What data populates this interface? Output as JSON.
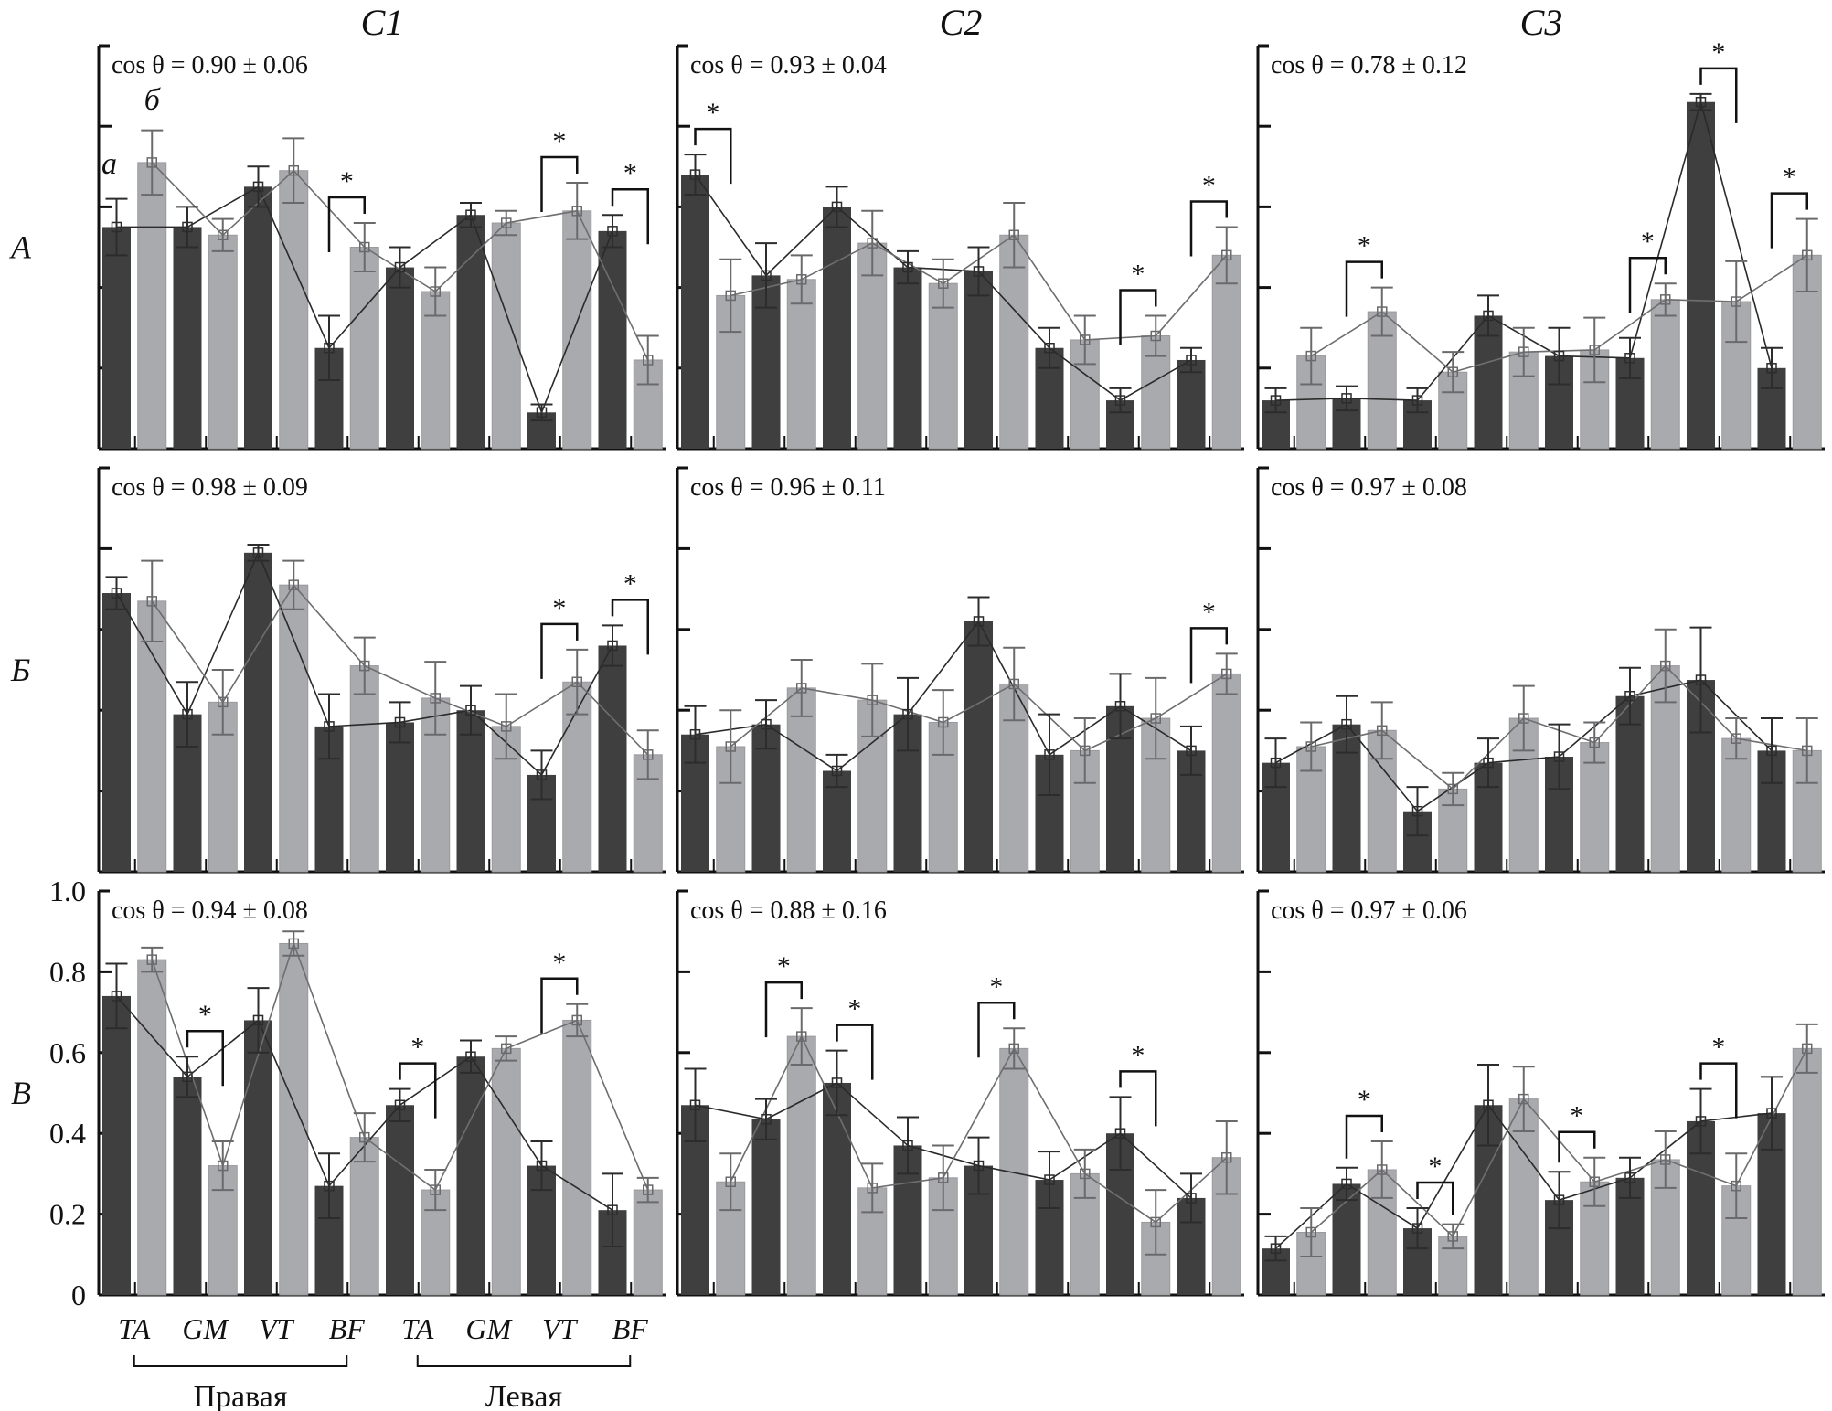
{
  "chart_data": {
    "type": "bar",
    "description": "3x3 grid of grouped bar charts with error bars and overlaid line profiles; dark bars = series a, light bars = series б",
    "columns": [
      "C1",
      "C2",
      "C3"
    ],
    "rows": [
      "А",
      "Б",
      "В"
    ],
    "categories": [
      "TA",
      "GM",
      "VT",
      "BF",
      "TA",
      "GM",
      "VT",
      "BF"
    ],
    "category_groups": [
      {
        "label": "Правая",
        "from": 0,
        "to": 3
      },
      {
        "label": "Левая",
        "from": 4,
        "to": 7
      }
    ],
    "series_names": [
      "а",
      "б"
    ],
    "series_colors": {
      "а": "#3f3f3f",
      "б": "#a9aaad"
    },
    "ylim": [
      0,
      1.0
    ],
    "yticks": [
      "0",
      "0.2",
      "0.4",
      "0.6",
      "0.8",
      "1.0"
    ],
    "panels": [
      {
        "row": "А",
        "col": "C1",
        "cos_label": "cos θ = 0.90 ± 0.06",
        "a": [
          0.55,
          0.55,
          0.65,
          0.25,
          0.45,
          0.58,
          0.09,
          0.54
        ],
        "a_err": [
          0.07,
          0.05,
          0.05,
          0.08,
          0.05,
          0.03,
          0.02,
          0.04
        ],
        "b": [
          0.71,
          0.53,
          0.69,
          0.5,
          0.39,
          0.56,
          0.59,
          0.22
        ],
        "b_err": [
          0.08,
          0.04,
          0.08,
          0.06,
          0.06,
          0.03,
          0.07,
          0.06
        ],
        "significant": [
          3,
          6,
          7
        ]
      },
      {
        "row": "А",
        "col": "C2",
        "cos_label": "cos θ = 0.93 ± 0.04",
        "a": [
          0.68,
          0.43,
          0.6,
          0.45,
          0.44,
          0.25,
          0.12,
          0.22
        ],
        "a_err": [
          0.05,
          0.08,
          0.05,
          0.04,
          0.06,
          0.05,
          0.03,
          0.03
        ],
        "b": [
          0.38,
          0.42,
          0.51,
          0.41,
          0.53,
          0.27,
          0.28,
          0.48
        ],
        "b_err": [
          0.09,
          0.06,
          0.08,
          0.06,
          0.08,
          0.06,
          0.05,
          0.07
        ],
        "significant": [
          0,
          6,
          7
        ]
      },
      {
        "row": "А",
        "col": "C3",
        "cos_label": "cos θ = 0.78 ± 0.12",
        "a": [
          0.12,
          0.125,
          0.12,
          0.33,
          0.23,
          0.225,
          0.86,
          0.2
        ],
        "a_err": [
          0.03,
          0.03,
          0.03,
          0.05,
          0.07,
          0.05,
          0.02,
          0.05
        ],
        "b": [
          0.23,
          0.34,
          0.19,
          0.24,
          0.245,
          0.37,
          0.365,
          0.48
        ],
        "b_err": [
          0.07,
          0.06,
          0.05,
          0.06,
          0.08,
          0.04,
          0.1,
          0.09
        ],
        "significant": [
          1,
          5,
          6,
          7
        ]
      },
      {
        "row": "Б",
        "col": "C1",
        "cos_label": "cos θ = 0.98 ± 0.09",
        "a": [
          0.69,
          0.39,
          0.79,
          0.36,
          0.37,
          0.4,
          0.24,
          0.56
        ],
        "a_err": [
          0.04,
          0.08,
          0.02,
          0.08,
          0.05,
          0.06,
          0.06,
          0.05
        ],
        "b": [
          0.67,
          0.42,
          0.71,
          0.51,
          0.43,
          0.36,
          0.47,
          0.29
        ],
        "b_err": [
          0.1,
          0.08,
          0.06,
          0.07,
          0.09,
          0.08,
          0.08,
          0.06
        ],
        "significant": [
          6,
          7
        ]
      },
      {
        "row": "Б",
        "col": "C2",
        "cos_label": "cos θ = 0.96 ± 0.11",
        "a": [
          0.34,
          0.365,
          0.25,
          0.39,
          0.62,
          0.29,
          0.41,
          0.3
        ],
        "a_err": [
          0.07,
          0.06,
          0.04,
          0.09,
          0.06,
          0.1,
          0.08,
          0.06
        ],
        "b": [
          0.31,
          0.455,
          0.425,
          0.37,
          0.465,
          0.3,
          0.38,
          0.49
        ],
        "b_err": [
          0.09,
          0.07,
          0.09,
          0.08,
          0.09,
          0.08,
          0.1,
          0.05
        ],
        "significant": [
          7
        ]
      },
      {
        "row": "Б",
        "col": "C3",
        "cos_label": "cos θ = 0.97 ± 0.08",
        "a": [
          0.27,
          0.365,
          0.15,
          0.27,
          0.285,
          0.435,
          0.475,
          0.3
        ],
        "a_err": [
          0.06,
          0.07,
          0.06,
          0.06,
          0.08,
          0.07,
          0.13,
          0.08
        ],
        "b": [
          0.31,
          0.35,
          0.205,
          0.38,
          0.32,
          0.51,
          0.33,
          0.3
        ],
        "b_err": [
          0.06,
          0.07,
          0.04,
          0.08,
          0.05,
          0.09,
          0.05,
          0.08
        ],
        "significant": []
      },
      {
        "row": "В",
        "col": "C1",
        "cos_label": "cos θ = 0.94 ± 0.08",
        "a": [
          0.74,
          0.54,
          0.68,
          0.27,
          0.47,
          0.59,
          0.32,
          0.21
        ],
        "a_err": [
          0.08,
          0.05,
          0.08,
          0.08,
          0.04,
          0.04,
          0.06,
          0.09
        ],
        "b": [
          0.83,
          0.32,
          0.87,
          0.39,
          0.26,
          0.61,
          0.68,
          0.26
        ],
        "b_err": [
          0.03,
          0.06,
          0.03,
          0.06,
          0.05,
          0.03,
          0.04,
          0.03
        ],
        "significant": [
          1,
          4,
          6
        ]
      },
      {
        "row": "В",
        "col": "C2",
        "cos_label": "cos θ = 0.88 ± 0.16",
        "a": [
          0.47,
          0.435,
          0.525,
          0.37,
          0.32,
          0.285,
          0.4,
          0.24
        ],
        "a_err": [
          0.09,
          0.05,
          0.08,
          0.07,
          0.07,
          0.07,
          0.09,
          0.06
        ],
        "b": [
          0.28,
          0.64,
          0.265,
          0.29,
          0.61,
          0.3,
          0.18,
          0.34
        ],
        "b_err": [
          0.07,
          0.07,
          0.06,
          0.08,
          0.05,
          0.06,
          0.08,
          0.09
        ],
        "significant": [
          1,
          2,
          4,
          6
        ]
      },
      {
        "row": "В",
        "col": "C3",
        "cos_label": "cos θ = 0.97 ± 0.06",
        "a": [
          0.115,
          0.275,
          0.165,
          0.47,
          0.235,
          0.29,
          0.43,
          0.45
        ],
        "a_err": [
          0.03,
          0.04,
          0.05,
          0.1,
          0.07,
          0.05,
          0.08,
          0.09
        ],
        "b": [
          0.155,
          0.31,
          0.145,
          0.485,
          0.28,
          0.335,
          0.27,
          0.61
        ],
        "b_err": [
          0.06,
          0.07,
          0.03,
          0.08,
          0.06,
          0.07,
          0.08,
          0.06
        ],
        "significant": [
          1,
          2,
          4,
          6
        ]
      }
    ],
    "significance_marker": "*",
    "annotations": [
      "а",
      "б"
    ]
  }
}
